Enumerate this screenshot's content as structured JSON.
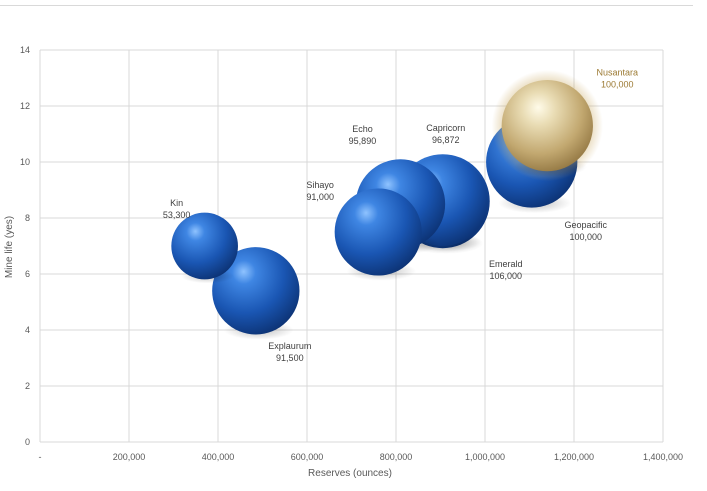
{
  "chart_data": {
    "type": "bubble",
    "xlabel": "Reserves (ounces)",
    "ylabel": "Mine life (yes)",
    "xlim": [
      0,
      1400000
    ],
    "ylim": [
      0,
      14
    ],
    "x_ticks": [
      "-",
      "200,000",
      "400,000",
      "600,000",
      "800,000",
      "1,000,000",
      "1,200,000",
      "1,400,000"
    ],
    "y_ticks": [
      "0",
      "2",
      "4",
      "6",
      "8",
      "10",
      "12",
      "14"
    ],
    "grid": true,
    "points": [
      {
        "name": "Kin",
        "value_label": "53,300",
        "x": 370000,
        "y": 7.0,
        "size": 53300,
        "color": "#1f5fbf",
        "highlight": false
      },
      {
        "name": "Explaurum",
        "value_label": "91,500",
        "x": 485000,
        "y": 5.4,
        "size": 91500,
        "color": "#1f5fbf",
        "highlight": false
      },
      {
        "name": "Sihayo",
        "value_label": "91,000",
        "x": 760000,
        "y": 7.5,
        "size": 91000,
        "color": "#1f5fbf",
        "highlight": false
      },
      {
        "name": "Echo",
        "value_label": "95,890",
        "x": 810000,
        "y": 8.5,
        "size": 95890,
        "color": "#1f5fbf",
        "highlight": false
      },
      {
        "name": "Capricorn",
        "value_label": "96,872",
        "x": 905000,
        "y": 8.6,
        "size": 96872,
        "color": "#1f5fbf",
        "highlight": false
      },
      {
        "name": "Emerald",
        "value_label": "106,000",
        "x": 905000,
        "y": 8.6,
        "size": 106000,
        "color": "#1f5fbf",
        "highlight": false
      },
      {
        "name": "Geopacific",
        "value_label": "100,000",
        "x": 1105000,
        "y": 10.0,
        "size": 100000,
        "color": "#1f5fbf",
        "highlight": false
      },
      {
        "name": "Nusantara",
        "value_label": "100,000",
        "x": 1140000,
        "y": 11.3,
        "size": 100000,
        "color": "#c8b07a",
        "highlight": true
      }
    ]
  }
}
